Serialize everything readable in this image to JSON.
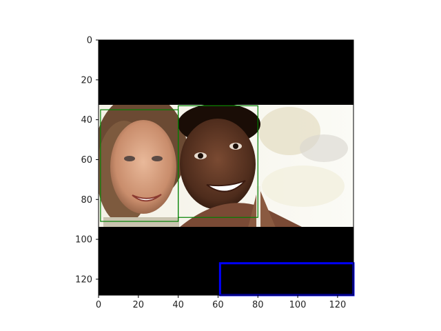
{
  "colors": {
    "canvas": "#000000",
    "face_box": "#008000",
    "blue_box": "#0000ff",
    "axis": "#000000"
  },
  "image_panel": {
    "extent": {
      "x": [
        0,
        128
      ],
      "y": [
        0,
        128
      ]
    },
    "photo": {
      "x_range": [
        0,
        128
      ],
      "y_range": [
        32,
        93
      ],
      "subject": "two smiling faces"
    }
  },
  "axes": {
    "x_ticks": [
      "0",
      "20",
      "40",
      "60",
      "80",
      "100",
      "120"
    ],
    "y_ticks": [
      "0",
      "20",
      "40",
      "60",
      "80",
      "100",
      "120"
    ]
  },
  "boxes": [
    {
      "name": "face-box-left",
      "color": "face_box",
      "x": [
        1,
        40
      ],
      "y": [
        35,
        91
      ]
    },
    {
      "name": "face-box-right",
      "color": "face_box",
      "x": [
        40,
        80
      ],
      "y": [
        33,
        89
      ]
    },
    {
      "name": "blue-box",
      "color": "blue_box",
      "x": [
        61,
        128
      ],
      "y": [
        112,
        128
      ]
    }
  ]
}
